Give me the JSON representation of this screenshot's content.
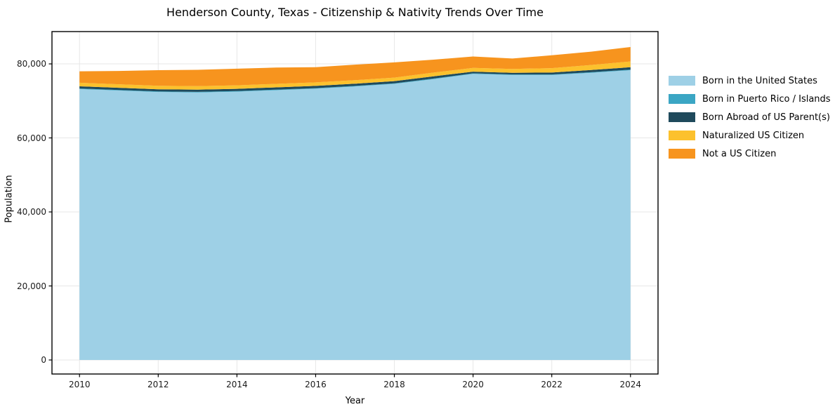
{
  "chart_data": {
    "type": "area",
    "stacked": true,
    "title": "Henderson County, Texas - Citizenship & Nativity Trends Over Time",
    "xlabel": "Year",
    "ylabel": "Population",
    "x": [
      2010,
      2011,
      2012,
      2013,
      2014,
      2015,
      2016,
      2017,
      2018,
      2019,
      2020,
      2021,
      2022,
      2023,
      2024
    ],
    "series": [
      {
        "name": "Born in the United States",
        "color": "#9ed0e6",
        "values": [
          73200,
          72800,
          72400,
          72300,
          72500,
          72900,
          73300,
          73900,
          74600,
          75900,
          77300,
          77000,
          77000,
          77600,
          78300
        ]
      },
      {
        "name": "Born in Puerto Rico / Islands",
        "color": "#3ba6c4",
        "values": [
          150,
          150,
          150,
          150,
          150,
          150,
          150,
          150,
          150,
          150,
          150,
          150,
          150,
          150,
          150
        ]
      },
      {
        "name": "Born Abroad of US Parent(s)",
        "color": "#1f4a5c",
        "values": [
          600,
          600,
          600,
          600,
          600,
          600,
          600,
          600,
          600,
          600,
          450,
          450,
          500,
          600,
          650
        ]
      },
      {
        "name": "Naturalized US Citizen",
        "color": "#fcc12d",
        "values": [
          950,
          950,
          950,
          950,
          950,
          950,
          950,
          950,
          950,
          1000,
          1000,
          1050,
          1200,
          1350,
          1550
        ]
      },
      {
        "name": "Not a US Citizen",
        "color": "#f7941e",
        "values": [
          3100,
          3600,
          4200,
          4400,
          4500,
          4400,
          4100,
          4200,
          4100,
          3500,
          3100,
          2800,
          3500,
          3600,
          3900
        ]
      }
    ],
    "xlim": [
      2009.3,
      2024.7
    ],
    "ylim": [
      -3790,
      88730
    ],
    "x_ticks": [
      "2010",
      "2012",
      "2014",
      "2016",
      "2018",
      "2020",
      "2022",
      "2024"
    ],
    "x_tick_values": [
      2010,
      2012,
      2014,
      2016,
      2018,
      2020,
      2022,
      2024
    ],
    "y_ticks": [
      "0",
      "20,000",
      "40,000",
      "60,000",
      "80,000"
    ],
    "y_tick_values": [
      0,
      20000,
      40000,
      60000,
      80000
    ],
    "grid": true,
    "grid_color": "#e7e7e7",
    "frame_color": "#000000",
    "legend_position": "right-outside"
  }
}
